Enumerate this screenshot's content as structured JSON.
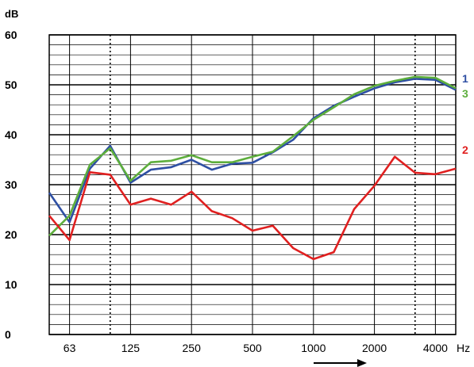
{
  "chart_data": {
    "type": "line",
    "yunit": "dB",
    "xunit": "Hz",
    "ylim": [
      0,
      60
    ],
    "yticks": [
      0,
      10,
      20,
      30,
      40,
      50,
      60
    ],
    "xtick_labels": [
      "63",
      "125",
      "250",
      "500",
      "1000",
      "2000",
      "4000"
    ],
    "x": [
      50,
      63,
      80,
      100,
      125,
      160,
      200,
      250,
      315,
      400,
      500,
      630,
      800,
      1000,
      1250,
      1600,
      2000,
      2500,
      3150,
      4000,
      5000
    ],
    "x_dotted_lines": [
      100,
      3150
    ],
    "grid": true,
    "series": [
      {
        "name": "1",
        "color": "#2E4FA3",
        "values": [
          28.4,
          22.5,
          33.2,
          37.8,
          30.4,
          33.0,
          33.5,
          35.0,
          33.0,
          34.2,
          34.4,
          36.5,
          39.0,
          43.3,
          45.8,
          47.6,
          49.3,
          50.5,
          51.2,
          51.0,
          49.0
        ]
      },
      {
        "name": "2",
        "color": "#E02020",
        "values": [
          23.8,
          18.9,
          32.5,
          32.0,
          26.0,
          27.2,
          26.0,
          28.6,
          24.7,
          23.3,
          20.8,
          21.8,
          17.3,
          15.1,
          16.5,
          25.1,
          29.8,
          35.6,
          32.4,
          32.1,
          33.2
        ]
      },
      {
        "name": "3",
        "color": "#5DAE3C",
        "values": [
          19.8,
          23.8,
          34.0,
          37.3,
          30.8,
          34.5,
          34.8,
          35.9,
          34.5,
          34.5,
          35.6,
          36.6,
          39.7,
          43.0,
          45.5,
          48.1,
          49.8,
          50.8,
          51.6,
          51.4,
          49.3
        ]
      }
    ]
  }
}
